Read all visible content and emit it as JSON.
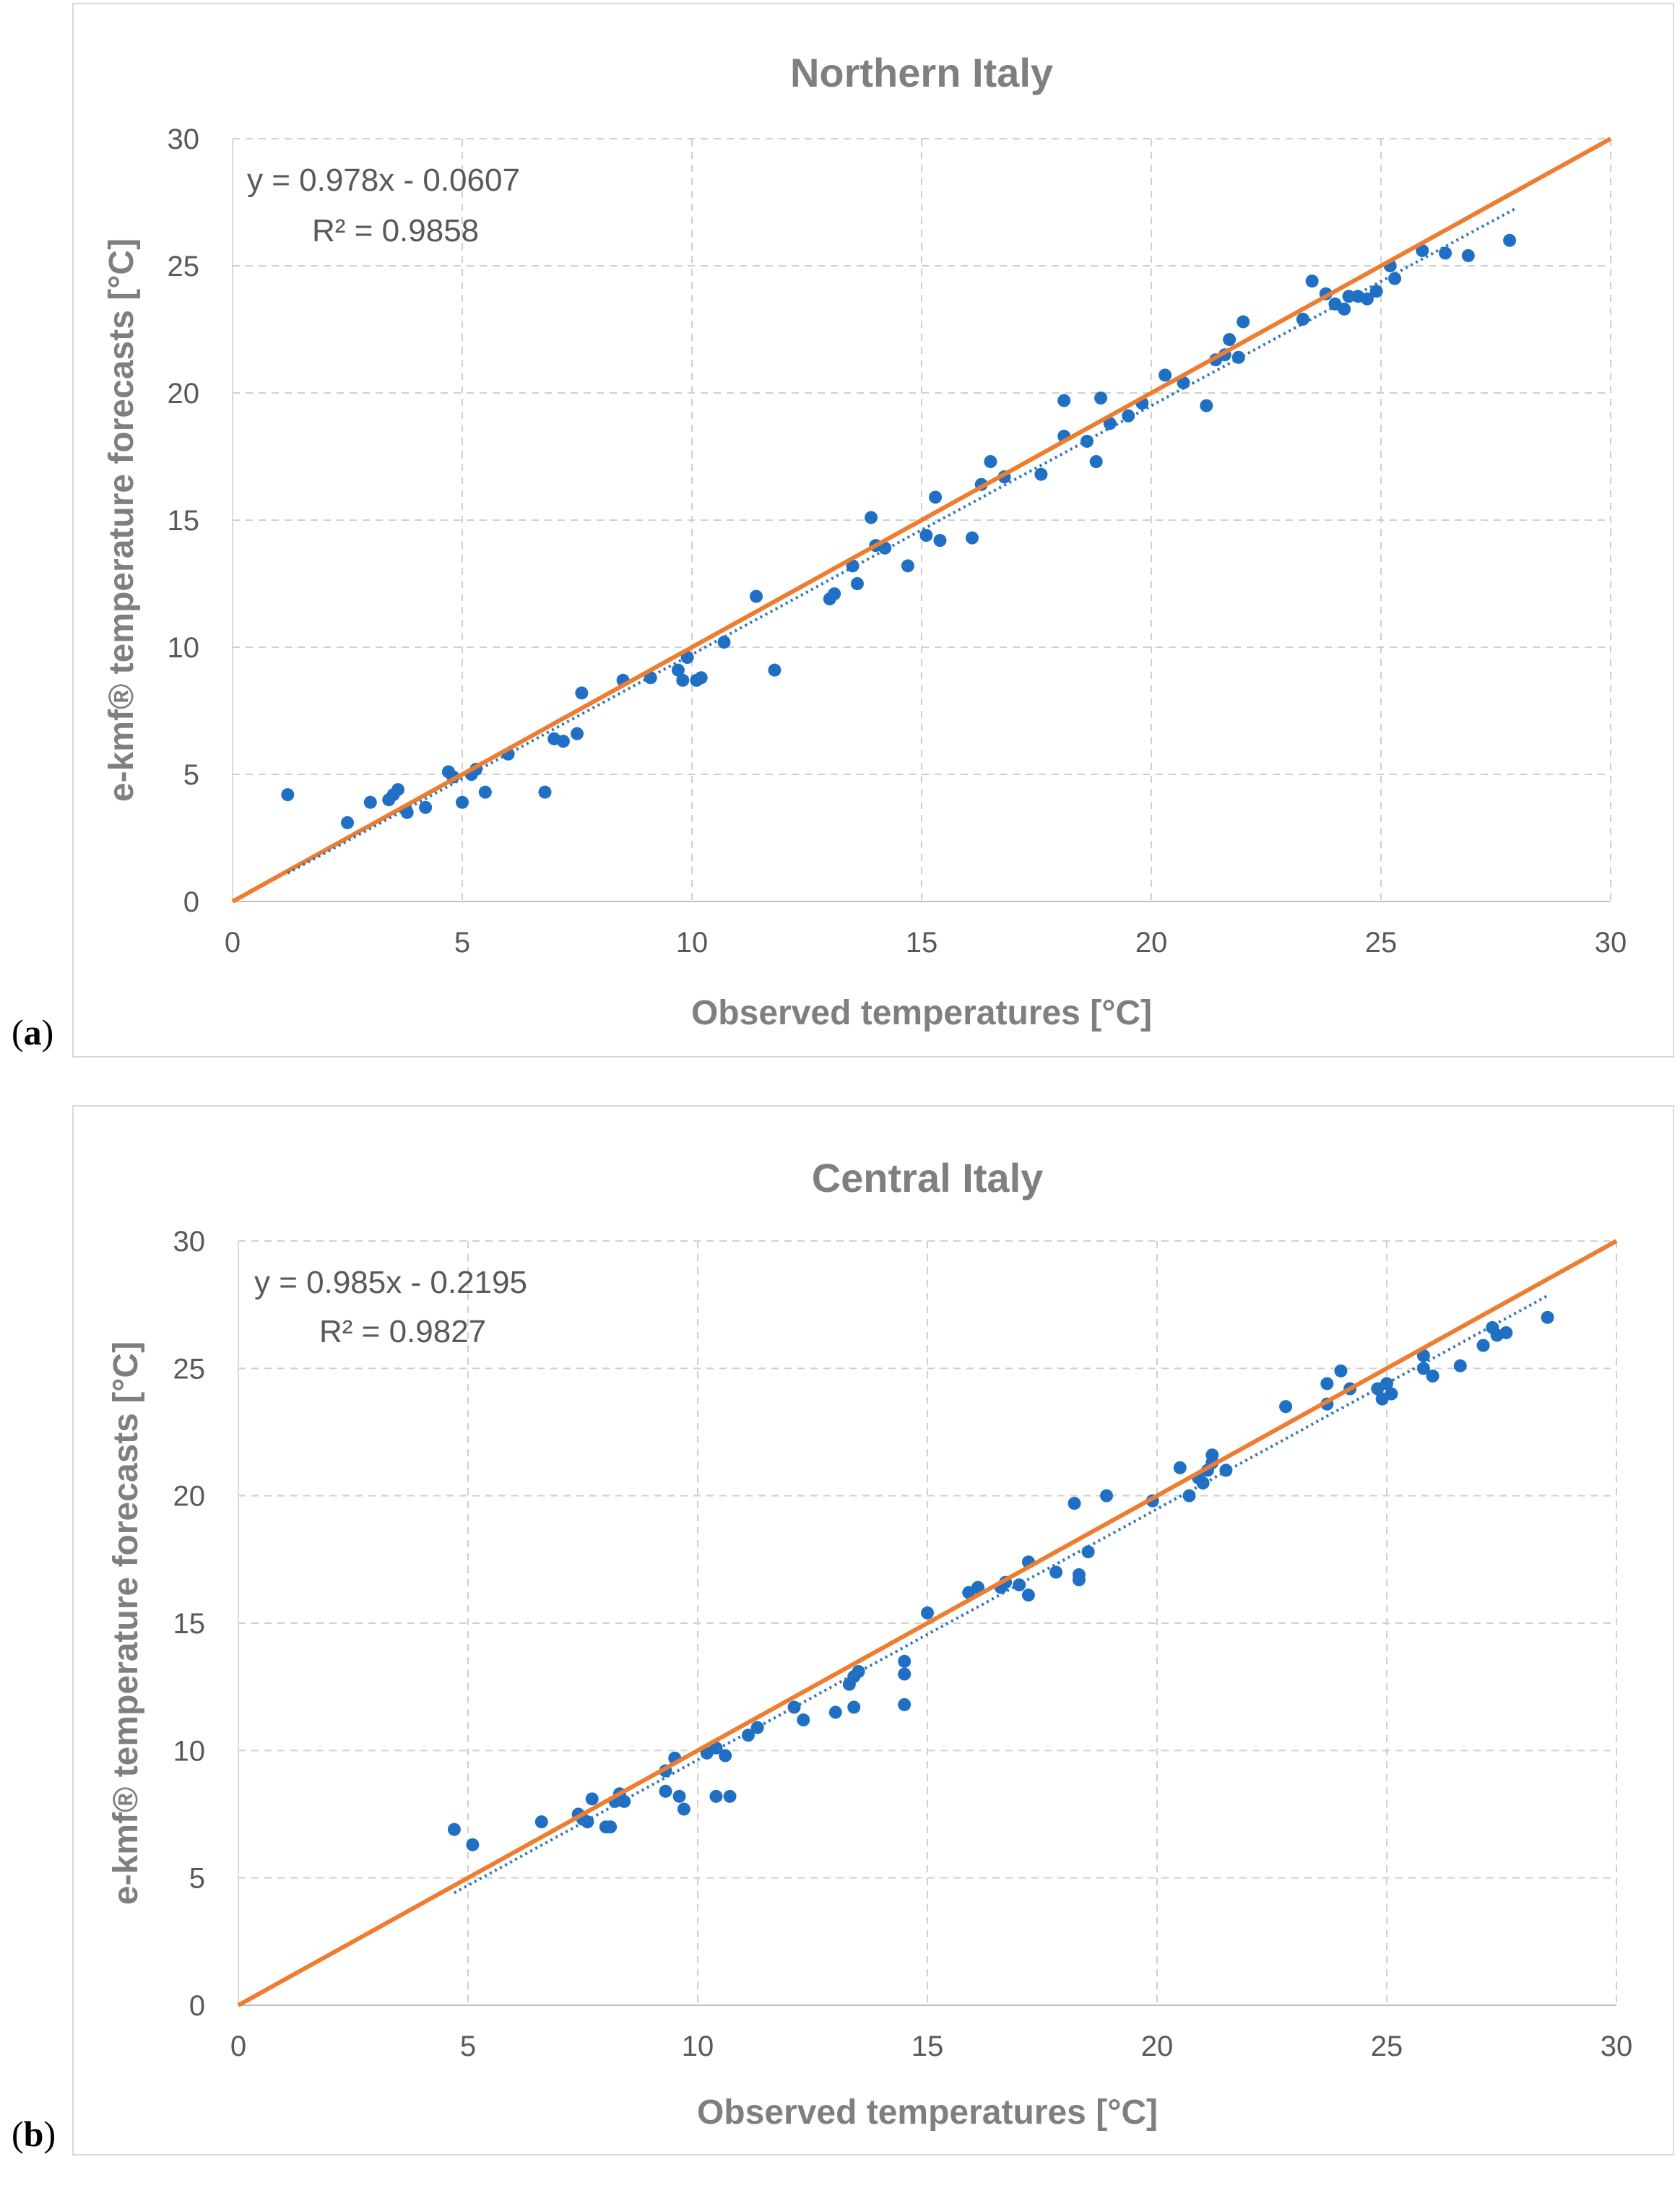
{
  "panels": [
    {
      "letter": "a"
    },
    {
      "letter": "b"
    }
  ],
  "colors": {
    "points": "#1f6fc5",
    "reference_line": "#ed7d31",
    "trendline": "#2e75b6",
    "grid": "#d0d0d0",
    "text": "#7f7f7f"
  },
  "chart_data": [
    {
      "type": "scatter",
      "title": "Northern Italy",
      "xlabel": "Observed temperatures [°C]",
      "ylabel": "e-kmf® temperature forecasts [°C]",
      "xlim": [
        0,
        30
      ],
      "ylim": [
        0,
        30
      ],
      "xticks": [
        0,
        5,
        10,
        15,
        20,
        25,
        30
      ],
      "yticks": [
        0,
        5,
        10,
        15,
        20,
        25,
        30
      ],
      "grid": true,
      "equation": "y = 0.978x - 0.0607",
      "r_squared": "R² = 0.9858",
      "trendline": {
        "slope": 0.978,
        "intercept": -0.0607,
        "x_range": [
          1.2,
          27.9
        ]
      },
      "reference_line": {
        "slope": 1,
        "intercept": 0,
        "x_range": [
          0,
          30
        ]
      },
      "points": [
        [
          1.2,
          4.2
        ],
        [
          2.5,
          3.1
        ],
        [
          3.0,
          3.9
        ],
        [
          3.4,
          4.0
        ],
        [
          3.5,
          4.2
        ],
        [
          3.6,
          4.4
        ],
        [
          3.8,
          3.5
        ],
        [
          4.2,
          3.7
        ],
        [
          4.7,
          5.1
        ],
        [
          4.8,
          4.9
        ],
        [
          5.0,
          3.9
        ],
        [
          5.2,
          5.0
        ],
        [
          5.3,
          5.2
        ],
        [
          5.5,
          4.3
        ],
        [
          6.0,
          5.8
        ],
        [
          6.8,
          4.3
        ],
        [
          7.0,
          6.4
        ],
        [
          7.2,
          6.3
        ],
        [
          7.5,
          6.6
        ],
        [
          7.6,
          8.2
        ],
        [
          8.5,
          8.7
        ],
        [
          9.1,
          8.8
        ],
        [
          9.7,
          9.1
        ],
        [
          9.8,
          8.7
        ],
        [
          9.9,
          9.6
        ],
        [
          10.1,
          8.7
        ],
        [
          10.2,
          8.8
        ],
        [
          10.7,
          10.2
        ],
        [
          11.4,
          12.0
        ],
        [
          11.8,
          9.1
        ],
        [
          13.0,
          11.9
        ],
        [
          13.1,
          12.1
        ],
        [
          13.5,
          13.2
        ],
        [
          13.6,
          12.5
        ],
        [
          13.9,
          15.1
        ],
        [
          14.0,
          14.0
        ],
        [
          14.2,
          13.9
        ],
        [
          14.7,
          13.2
        ],
        [
          15.1,
          14.4
        ],
        [
          15.3,
          15.9
        ],
        [
          15.4,
          14.2
        ],
        [
          16.1,
          14.3
        ],
        [
          16.3,
          16.4
        ],
        [
          16.5,
          17.3
        ],
        [
          16.8,
          16.7
        ],
        [
          17.6,
          16.8
        ],
        [
          18.1,
          18.3
        ],
        [
          18.1,
          19.7
        ],
        [
          18.6,
          18.1
        ],
        [
          18.8,
          17.3
        ],
        [
          18.9,
          19.8
        ],
        [
          19.1,
          18.8
        ],
        [
          19.5,
          19.1
        ],
        [
          19.8,
          19.6
        ],
        [
          20.3,
          20.7
        ],
        [
          20.7,
          20.4
        ],
        [
          21.2,
          19.5
        ],
        [
          21.4,
          21.3
        ],
        [
          21.6,
          21.5
        ],
        [
          21.7,
          22.1
        ],
        [
          21.9,
          21.4
        ],
        [
          22.0,
          22.8
        ],
        [
          23.3,
          22.9
        ],
        [
          23.5,
          24.4
        ],
        [
          23.8,
          23.9
        ],
        [
          24.0,
          23.5
        ],
        [
          24.2,
          23.3
        ],
        [
          24.3,
          23.8
        ],
        [
          24.5,
          23.8
        ],
        [
          24.7,
          23.7
        ],
        [
          24.9,
          24.0
        ],
        [
          25.2,
          25.0
        ],
        [
          25.3,
          24.5
        ],
        [
          25.9,
          25.6
        ],
        [
          26.4,
          25.5
        ],
        [
          26.9,
          25.4
        ],
        [
          27.8,
          26.0
        ]
      ]
    },
    {
      "type": "scatter",
      "title": "Central Italy",
      "xlabel": "Observed temperatures [°C]",
      "ylabel": "e-kmf® temperature forecasts [°C]",
      "xlim": [
        0,
        30
      ],
      "ylim": [
        0,
        30
      ],
      "xticks": [
        0,
        5,
        10,
        15,
        20,
        25,
        30
      ],
      "yticks": [
        0,
        5,
        10,
        15,
        20,
        25,
        30
      ],
      "grid": true,
      "equation": "y = 0.985x - 0.2195",
      "r_squared": "R² = 0.9827",
      "trendline": {
        "slope": 0.985,
        "intercept": -0.2195,
        "x_range": [
          4.7,
          28.5
        ]
      },
      "reference_line": {
        "slope": 1,
        "intercept": 0,
        "x_range": [
          0,
          30
        ]
      },
      "points": [
        [
          4.7,
          6.9
        ],
        [
          5.1,
          6.3
        ],
        [
          6.6,
          7.2
        ],
        [
          7.4,
          7.5
        ],
        [
          7.5,
          7.3
        ],
        [
          7.6,
          7.2
        ],
        [
          7.7,
          8.1
        ],
        [
          8.0,
          7.0
        ],
        [
          8.1,
          7.0
        ],
        [
          8.2,
          8.0
        ],
        [
          8.3,
          8.3
        ],
        [
          8.4,
          8.0
        ],
        [
          9.3,
          9.2
        ],
        [
          9.3,
          8.4
        ],
        [
          9.5,
          9.7
        ],
        [
          9.6,
          8.2
        ],
        [
          9.7,
          7.7
        ],
        [
          10.2,
          9.9
        ],
        [
          10.4,
          10.1
        ],
        [
          10.4,
          8.2
        ],
        [
          10.6,
          9.8
        ],
        [
          10.7,
          8.2
        ],
        [
          11.1,
          10.6
        ],
        [
          11.3,
          10.9
        ],
        [
          12.1,
          11.7
        ],
        [
          12.3,
          11.2
        ],
        [
          13.0,
          11.5
        ],
        [
          13.3,
          12.6
        ],
        [
          13.4,
          12.9
        ],
        [
          13.4,
          11.7
        ],
        [
          13.5,
          13.1
        ],
        [
          14.5,
          13.5
        ],
        [
          14.5,
          13.0
        ],
        [
          14.5,
          11.8
        ],
        [
          15.0,
          15.4
        ],
        [
          15.9,
          16.2
        ],
        [
          16.1,
          16.4
        ],
        [
          16.6,
          16.4
        ],
        [
          16.7,
          16.6
        ],
        [
          17.0,
          16.5
        ],
        [
          17.2,
          17.4
        ],
        [
          17.2,
          16.1
        ],
        [
          17.8,
          17.0
        ],
        [
          18.2,
          19.7
        ],
        [
          18.3,
          16.9
        ],
        [
          18.3,
          16.7
        ],
        [
          18.5,
          17.8
        ],
        [
          18.9,
          20.0
        ],
        [
          19.9,
          19.8
        ],
        [
          20.5,
          21.1
        ],
        [
          20.7,
          20.0
        ],
        [
          20.9,
          20.7
        ],
        [
          21.0,
          20.5
        ],
        [
          21.1,
          21.0
        ],
        [
          21.2,
          21.3
        ],
        [
          21.2,
          21.6
        ],
        [
          21.5,
          21.0
        ],
        [
          22.8,
          23.5
        ],
        [
          23.7,
          23.6
        ],
        [
          23.7,
          24.4
        ],
        [
          24.0,
          24.9
        ],
        [
          24.2,
          24.2
        ],
        [
          24.8,
          24.2
        ],
        [
          24.9,
          23.8
        ],
        [
          25.0,
          24.4
        ],
        [
          25.1,
          24.0
        ],
        [
          25.8,
          25.0
        ],
        [
          25.8,
          25.5
        ],
        [
          26.0,
          24.7
        ],
        [
          26.6,
          25.1
        ],
        [
          27.1,
          25.9
        ],
        [
          27.3,
          26.6
        ],
        [
          27.4,
          26.3
        ],
        [
          27.6,
          26.4
        ],
        [
          28.5,
          27.0
        ]
      ]
    }
  ]
}
